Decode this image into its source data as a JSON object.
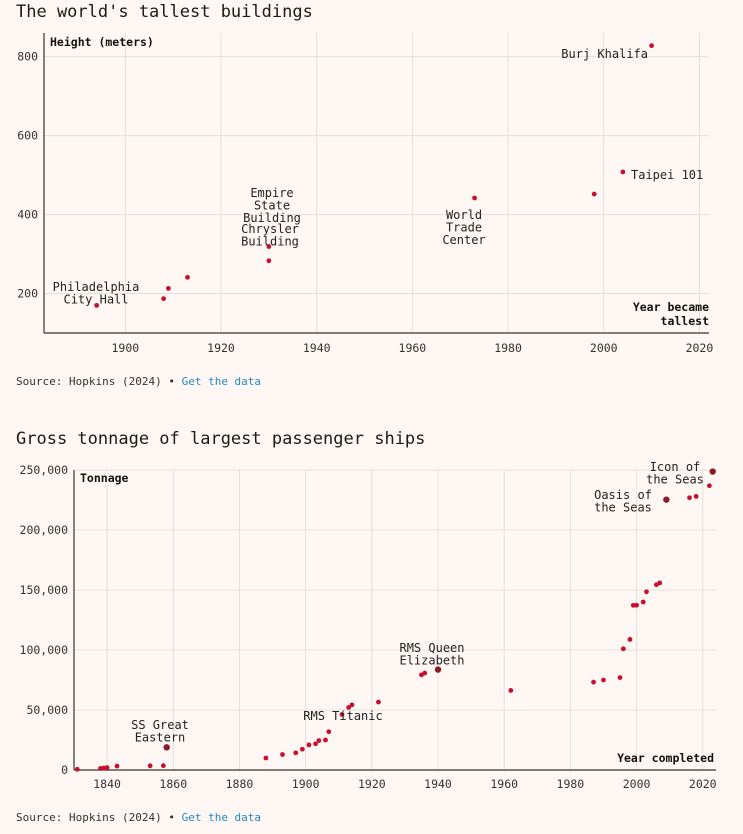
{
  "chart_data": [
    {
      "type": "scatter",
      "title": "The world's tallest buildings",
      "ylabel": "Height (meters)",
      "xlabel": "Year became tallest",
      "xlim": [
        1883,
        2022
      ],
      "ylim": [
        100,
        860
      ],
      "x_ticks": [
        "1900",
        "1920",
        "1940",
        "1960",
        "1980",
        "2000",
        "2020"
      ],
      "y_ticks": [
        "200",
        "400",
        "600",
        "800"
      ],
      "grid": true,
      "points": [
        {
          "x": 1894,
          "y": 170
        },
        {
          "x": 1908,
          "y": 187
        },
        {
          "x": 1909,
          "y": 213
        },
        {
          "x": 1913,
          "y": 241
        },
        {
          "x": 1930,
          "y": 283
        },
        {
          "x": 1930,
          "y": 319
        },
        {
          "x": 1973,
          "y": 442
        },
        {
          "x": 1998,
          "y": 452
        },
        {
          "x": 2004,
          "y": 508
        },
        {
          "x": 2010,
          "y": 828
        }
      ],
      "annotations": [
        {
          "text": [
            "Philadelphia",
            "City Hall"
          ],
          "x": 1894,
          "y": 170
        },
        {
          "text": [
            "Empire",
            "State",
            "Building"
          ],
          "x": 1931,
          "y": 381
        },
        {
          "text": [
            "Chrysler",
            "Building"
          ],
          "x": 1930,
          "y": 319
        },
        {
          "text": [
            "World",
            "Trade",
            "Center"
          ],
          "x": 1973,
          "y": 417
        },
        {
          "text": [
            "Taipei 101"
          ],
          "x": 2004,
          "y": 508
        },
        {
          "text": [
            "Burj Khalifa"
          ],
          "x": 2010,
          "y": 828
        }
      ],
      "source_prefix": "Source: Hopkins (2024) •",
      "source_link": "Get the data"
    },
    {
      "type": "scatter",
      "title": "Gross tonnage of largest passenger ships",
      "ylabel": "Tonnage",
      "xlabel": "Year completed",
      "xlim": [
        1830,
        2024
      ],
      "ylim": [
        0,
        250000
      ],
      "x_ticks": [
        "1840",
        "1860",
        "1880",
        "1900",
        "1920",
        "1940",
        "1960",
        "1980",
        "2000",
        "2020"
      ],
      "y_ticks": [
        "0",
        "50,000",
        "100,000",
        "150,000",
        "200,000",
        "250,000"
      ],
      "grid": true,
      "points": [
        {
          "x": 1831,
          "y": 600
        },
        {
          "x": 1838,
          "y": 1300
        },
        {
          "x": 1839,
          "y": 1600
        },
        {
          "x": 1840,
          "y": 2000
        },
        {
          "x": 1843,
          "y": 3300
        },
        {
          "x": 1853,
          "y": 3500
        },
        {
          "x": 1857,
          "y": 3600
        },
        {
          "x": 1858,
          "y": 18900,
          "highlight": true
        },
        {
          "x": 1888,
          "y": 10000
        },
        {
          "x": 1893,
          "y": 12900
        },
        {
          "x": 1897,
          "y": 14300
        },
        {
          "x": 1899,
          "y": 17300
        },
        {
          "x": 1901,
          "y": 20900
        },
        {
          "x": 1903,
          "y": 21800
        },
        {
          "x": 1904,
          "y": 24500
        },
        {
          "x": 1906,
          "y": 25000
        },
        {
          "x": 1907,
          "y": 31900
        },
        {
          "x": 1911,
          "y": 46300
        },
        {
          "x": 1913,
          "y": 52100
        },
        {
          "x": 1914,
          "y": 54300
        },
        {
          "x": 1922,
          "y": 56600
        },
        {
          "x": 1935,
          "y": 79300
        },
        {
          "x": 1936,
          "y": 80800
        },
        {
          "x": 1940,
          "y": 83700,
          "highlight": true
        },
        {
          "x": 1962,
          "y": 66300
        },
        {
          "x": 1987,
          "y": 73200
        },
        {
          "x": 1990,
          "y": 75000
        },
        {
          "x": 1995,
          "y": 77000
        },
        {
          "x": 1996,
          "y": 101000
        },
        {
          "x": 1998,
          "y": 108800
        },
        {
          "x": 1999,
          "y": 137200
        },
        {
          "x": 2000,
          "y": 137300
        },
        {
          "x": 2002,
          "y": 140000
        },
        {
          "x": 2003,
          "y": 148500
        },
        {
          "x": 2006,
          "y": 154400
        },
        {
          "x": 2007,
          "y": 155900
        },
        {
          "x": 2009,
          "y": 225300,
          "highlight": true
        },
        {
          "x": 2016,
          "y": 226900
        },
        {
          "x": 2018,
          "y": 228000
        },
        {
          "x": 2022,
          "y": 236900
        },
        {
          "x": 2023,
          "y": 248700,
          "highlight": true
        }
      ],
      "annotations": [
        {
          "text": [
            "SS Great",
            "Eastern"
          ],
          "x": 1858,
          "y": 18900
        },
        {
          "text": [
            "RMS Titanic"
          ],
          "x": 1911,
          "y": 46300
        },
        {
          "text": [
            "RMS Queen",
            "Elizabeth"
          ],
          "x": 1940,
          "y": 83700
        },
        {
          "text": [
            "Oasis of",
            "the Seas"
          ],
          "x": 2009,
          "y": 225300
        },
        {
          "text": [
            "Icon of",
            "the Seas"
          ],
          "x": 2023,
          "y": 248700
        }
      ],
      "source_prefix": "Source: Hopkins (2024) •",
      "source_link": "Get the data"
    }
  ],
  "colors": {
    "point": "#c8102e",
    "highlight": "#8b1a2b",
    "grid": "#e4dfdb",
    "axis": "#333333",
    "link": "#1e88c8"
  }
}
